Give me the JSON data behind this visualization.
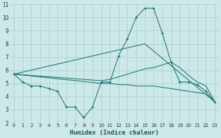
{
  "background_color": "#cce8e8",
  "grid_color": "#aacccc",
  "line_color": "#1a7070",
  "marker_color": "#1a7070",
  "xlabel": "Humidex (Indice chaleur)",
  "xlim": [
    -0.5,
    23.5
  ],
  "ylim": [
    2,
    11
  ],
  "xticks": [
    0,
    1,
    2,
    3,
    4,
    5,
    6,
    7,
    8,
    9,
    10,
    11,
    12,
    13,
    14,
    15,
    16,
    17,
    18,
    19,
    20,
    21,
    22,
    23
  ],
  "yticks": [
    2,
    3,
    4,
    5,
    6,
    7,
    8,
    9,
    10,
    11
  ],
  "series": [
    {
      "x": [
        0,
        1,
        2,
        3,
        4,
        5,
        6,
        7,
        8,
        9,
        10,
        11,
        12,
        13,
        14,
        15,
        16,
        17,
        18,
        19,
        20,
        21,
        22,
        23
      ],
      "y": [
        5.7,
        5.1,
        4.8,
        4.8,
        4.6,
        4.4,
        3.2,
        3.2,
        2.4,
        3.2,
        5.1,
        5.1,
        7.1,
        8.4,
        10.0,
        10.7,
        10.7,
        8.8,
        6.6,
        5.1,
        5.1,
        4.9,
        4.4,
        3.6
      ],
      "markers": true
    },
    {
      "x": [
        0,
        10,
        11,
        12,
        13,
        14,
        15,
        16,
        17,
        18,
        19,
        20,
        21,
        22,
        23
      ],
      "y": [
        5.7,
        5.2,
        5.3,
        5.5,
        5.7,
        5.9,
        6.1,
        6.2,
        6.4,
        6.6,
        6.2,
        5.6,
        5.1,
        4.8,
        3.6
      ],
      "markers": false
    },
    {
      "x": [
        0,
        15,
        23
      ],
      "y": [
        5.7,
        8.0,
        3.6
      ],
      "markers": false
    },
    {
      "x": [
        0,
        10,
        11,
        12,
        13,
        14,
        15,
        16,
        17,
        18,
        19,
        20,
        21,
        22,
        23
      ],
      "y": [
        5.7,
        5.0,
        5.0,
        4.9,
        4.9,
        4.8,
        4.8,
        4.8,
        4.7,
        4.6,
        4.5,
        4.4,
        4.3,
        4.2,
        3.6
      ],
      "markers": false
    }
  ]
}
